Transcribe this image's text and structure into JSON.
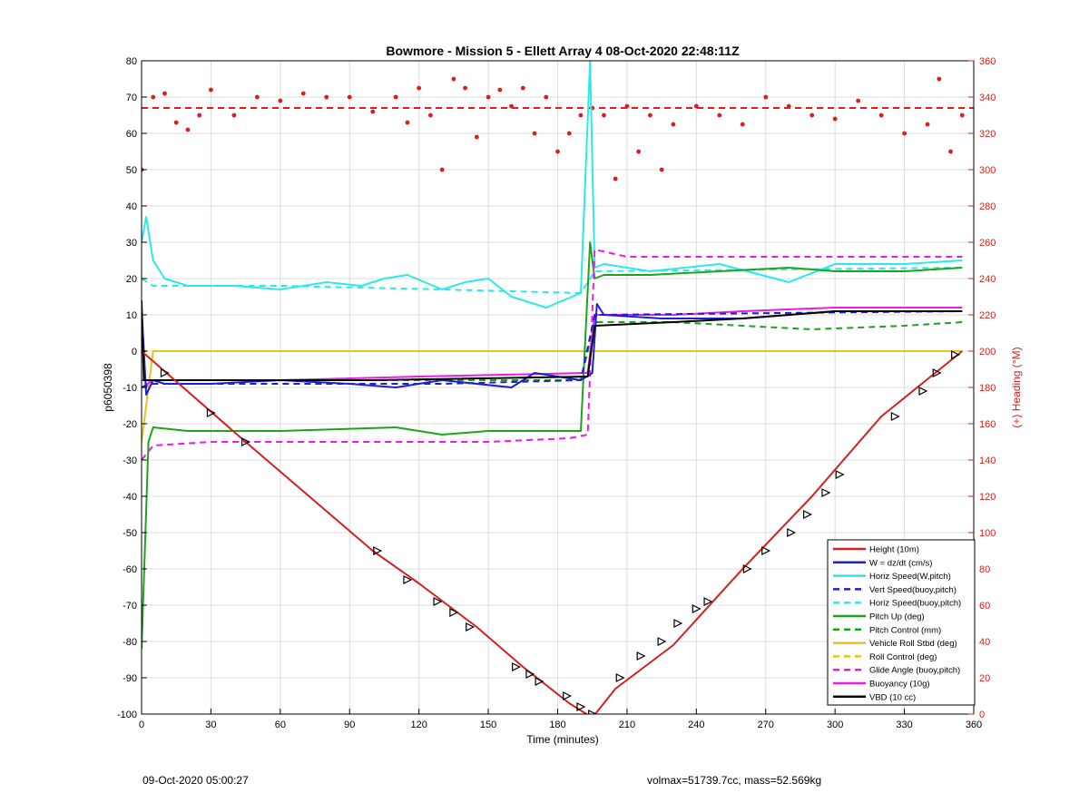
{
  "chart_data": {
    "type": "line",
    "title": "Bowmore - Mission 5 - Ellett Array 4 08-Oct-2020 22:48:11Z",
    "xlabel": "Time (minutes)",
    "ylabel_left": "p6050398",
    "ylabel_right": "(+) Heading (°M)",
    "xlim": [
      0,
      360
    ],
    "ylim_left": [
      -100,
      80
    ],
    "ylim_right": [
      0,
      360
    ],
    "x_ticks": [
      0,
      30,
      60,
      90,
      120,
      150,
      180,
      210,
      240,
      270,
      300,
      330,
      360
    ],
    "y_ticks_left": [
      80,
      70,
      60,
      50,
      40,
      30,
      20,
      10,
      0,
      -10,
      -20,
      -30,
      -40,
      -50,
      -60,
      -70,
      -80,
      -90,
      -100
    ],
    "y_ticks_right": [
      360,
      340,
      320,
      300,
      280,
      260,
      240,
      220,
      200,
      180,
      160,
      140,
      120,
      100,
      80,
      60,
      40,
      20,
      0
    ],
    "grid": true,
    "legend_position": "bottom-right",
    "colors": {
      "red": "#e41a1a",
      "blue": "#1f1fd0",
      "cyan": "#2ee8e8",
      "green": "#1aa51a",
      "yellow": "#e3c51c",
      "magenta": "#e61ee6",
      "black": "#000000"
    },
    "series": [
      {
        "name": "Height (10m)",
        "color": "#d42020",
        "style": "solid",
        "x": [
          0,
          45,
          100,
          120,
          145,
          165,
          185,
          195,
          205,
          230,
          260,
          290,
          320,
          355
        ],
        "y": [
          0,
          -25,
          -55,
          -64,
          -76,
          -87,
          -97,
          -101,
          -93,
          -81,
          -60,
          -40,
          -18,
          0
        ]
      },
      {
        "name": "W = dz/dt (cm/s)",
        "color": "#1f1fd0",
        "style": "solid",
        "x": [
          0,
          2,
          5,
          10,
          30,
          60,
          90,
          110,
          130,
          160,
          170,
          190,
          195,
          197,
          200,
          225,
          260,
          300,
          340,
          355
        ],
        "y": [
          12,
          -12,
          -8,
          -9,
          -9,
          -8,
          -9,
          -10,
          -8,
          -10,
          -6,
          -8,
          -6,
          13,
          10,
          9,
          9,
          11,
          11,
          11
        ]
      },
      {
        "name": "Horiz Speed(W,pitch)",
        "color": "#2ee8e8",
        "style": "solid",
        "x": [
          0,
          2,
          5,
          10,
          20,
          40,
          60,
          80,
          95,
          105,
          115,
          130,
          140,
          150,
          160,
          175,
          190,
          194,
          196,
          200,
          220,
          250,
          280,
          300,
          330,
          355
        ],
        "y": [
          30,
          37,
          25,
          20,
          18,
          18,
          17,
          19,
          18,
          20,
          21,
          17,
          19,
          20,
          15,
          12,
          16,
          80,
          23,
          24,
          22,
          24,
          19,
          24,
          24,
          25
        ]
      },
      {
        "name": "Vert Speed(buoy,pitch)",
        "color": "#1f1fd0",
        "style": "dashed",
        "x": [
          0,
          5,
          60,
          130,
          190,
          196,
          355
        ],
        "y": [
          -10,
          -9,
          -9,
          -9,
          -8,
          10,
          11
        ]
      },
      {
        "name": "Horiz Speed(buoy,pitch)",
        "color": "#2ee8e8",
        "style": "dashed",
        "x": [
          0,
          5,
          60,
          130,
          190,
          196,
          355
        ],
        "y": [
          20,
          18,
          18,
          17,
          16,
          22,
          23
        ]
      },
      {
        "name": "Pitch Up (deg)",
        "color": "#1aa51a",
        "style": "solid",
        "x": [
          0,
          3,
          5,
          20,
          60,
          110,
          130,
          150,
          190,
          194,
          196,
          200,
          220,
          250,
          280,
          300,
          330,
          355
        ],
        "y": [
          -82,
          -25,
          -21,
          -22,
          -22,
          -21,
          -23,
          -22,
          -22,
          30,
          20,
          21,
          21,
          22,
          23,
          22,
          22,
          23
        ]
      },
      {
        "name": "Pitch Control (mm)",
        "color": "#1aa51a",
        "style": "dashed",
        "x": [
          0,
          5,
          100,
          190,
          196,
          230,
          260,
          290,
          330,
          355
        ],
        "y": [
          -8,
          -8,
          -8,
          -8,
          8,
          8,
          7,
          6,
          7,
          8
        ]
      },
      {
        "name": "Vehicle Roll Stbd (deg)",
        "color": "#e3c51c",
        "style": "solid",
        "x": [
          0,
          5,
          10,
          20,
          60,
          90,
          130,
          160,
          192,
          196,
          210,
          240,
          270,
          300,
          330,
          355
        ],
        "y": [
          -25,
          0,
          0,
          0,
          0,
          0,
          0,
          0,
          0,
          0,
          0,
          0,
          0,
          0,
          0,
          0
        ]
      },
      {
        "name": "Roll Control (deg)",
        "color": "#e3c51c",
        "style": "dashed",
        "x": [
          0,
          5,
          100,
          190,
          196,
          355
        ],
        "y": [
          0,
          0,
          0,
          0,
          0,
          0
        ]
      },
      {
        "name": "Glide Angle (buoy,pitch)",
        "color": "#e61ee6",
        "style": "dashed",
        "x": [
          0,
          5,
          30,
          80,
          120,
          150,
          185,
          193,
          196,
          210,
          250,
          290,
          320,
          355
        ],
        "y": [
          -30,
          -26,
          -25,
          -25,
          -25,
          -25,
          -24,
          -23,
          28,
          26,
          26,
          26,
          26,
          26
        ]
      },
      {
        "name": "Buoyancy (10g)",
        "color": "#e61ee6",
        "style": "solid",
        "x": [
          0,
          5,
          60,
          120,
          193,
          196,
          230,
          260,
          300,
          355
        ],
        "y": [
          -10,
          -8,
          -8,
          -7,
          -6,
          10,
          10,
          11,
          12,
          12
        ]
      },
      {
        "name": "VBD (10 cc)",
        "color": "#000000",
        "style": "solid",
        "x": [
          0,
          1,
          2,
          100,
          193,
          196,
          230,
          260,
          300,
          355
        ],
        "y": [
          14,
          -8,
          -8,
          -8,
          -7,
          7,
          8,
          9,
          11,
          11
        ]
      },
      {
        "name": "Heading (°M)",
        "color": "#e41a1a",
        "style": "dots",
        "axis": "right",
        "x": [
          0,
          5,
          10,
          15,
          20,
          25,
          30,
          40,
          50,
          60,
          70,
          80,
          90,
          100,
          110,
          115,
          120,
          125,
          130,
          135,
          140,
          145,
          150,
          155,
          160,
          165,
          170,
          175,
          180,
          185,
          190,
          195,
          200,
          205,
          210,
          215,
          220,
          225,
          230,
          240,
          250,
          260,
          270,
          280,
          290,
          300,
          310,
          320,
          330,
          340,
          345,
          350,
          355
        ],
        "y": [
          300,
          340,
          342,
          326,
          322,
          330,
          344,
          330,
          340,
          338,
          342,
          340,
          340,
          332,
          340,
          326,
          345,
          330,
          300,
          350,
          345,
          318,
          340,
          344,
          335,
          345,
          320,
          340,
          310,
          320,
          330,
          334,
          330,
          295,
          335,
          310,
          330,
          300,
          325,
          335,
          330,
          325,
          340,
          335,
          330,
          328,
          338,
          330,
          320,
          325,
          350,
          310,
          330
        ]
      },
      {
        "name": "Heading reference",
        "color": "#e41a1a",
        "style": "dashed",
        "axis": "right",
        "x": [
          0,
          360
        ],
        "y": [
          334,
          334
        ]
      }
    ],
    "legend_order": [
      "Height (10m)",
      "W = dz/dt (cm/s)",
      "Horiz Speed(W,pitch)",
      "Vert Speed(buoy,pitch)",
      "Horiz Speed(buoy,pitch)",
      "Pitch Up (deg)",
      "Pitch Control (mm)",
      "Vehicle Roll Stbd (deg)",
      "Roll Control (deg)",
      "Glide Angle (buoy,pitch)",
      "Buoyancy (10g)",
      "VBD (10 cc)"
    ],
    "markers": {
      "name": "dive markers",
      "x": [
        0,
        10,
        30,
        45,
        102,
        115,
        128,
        135,
        142,
        162,
        168,
        172,
        184,
        190,
        195,
        207,
        216,
        225,
        232,
        240,
        245,
        262,
        270,
        281,
        288,
        296,
        302,
        326,
        338,
        344,
        352
      ],
      "y": [
        0,
        -6,
        -17,
        -25,
        -55,
        -63,
        -69,
        -72,
        -76,
        -87,
        -89,
        -91,
        -95,
        -98,
        -100,
        -90,
        -84,
        -80,
        -75,
        -71,
        -69,
        -60,
        -55,
        -50,
        -45,
        -39,
        -34,
        -18,
        -11,
        -6,
        -1
      ]
    }
  },
  "footer": {
    "left": "09-Oct-2020 05:00:27",
    "right": "volmax=51739.7cc, mass=52.569kg"
  }
}
